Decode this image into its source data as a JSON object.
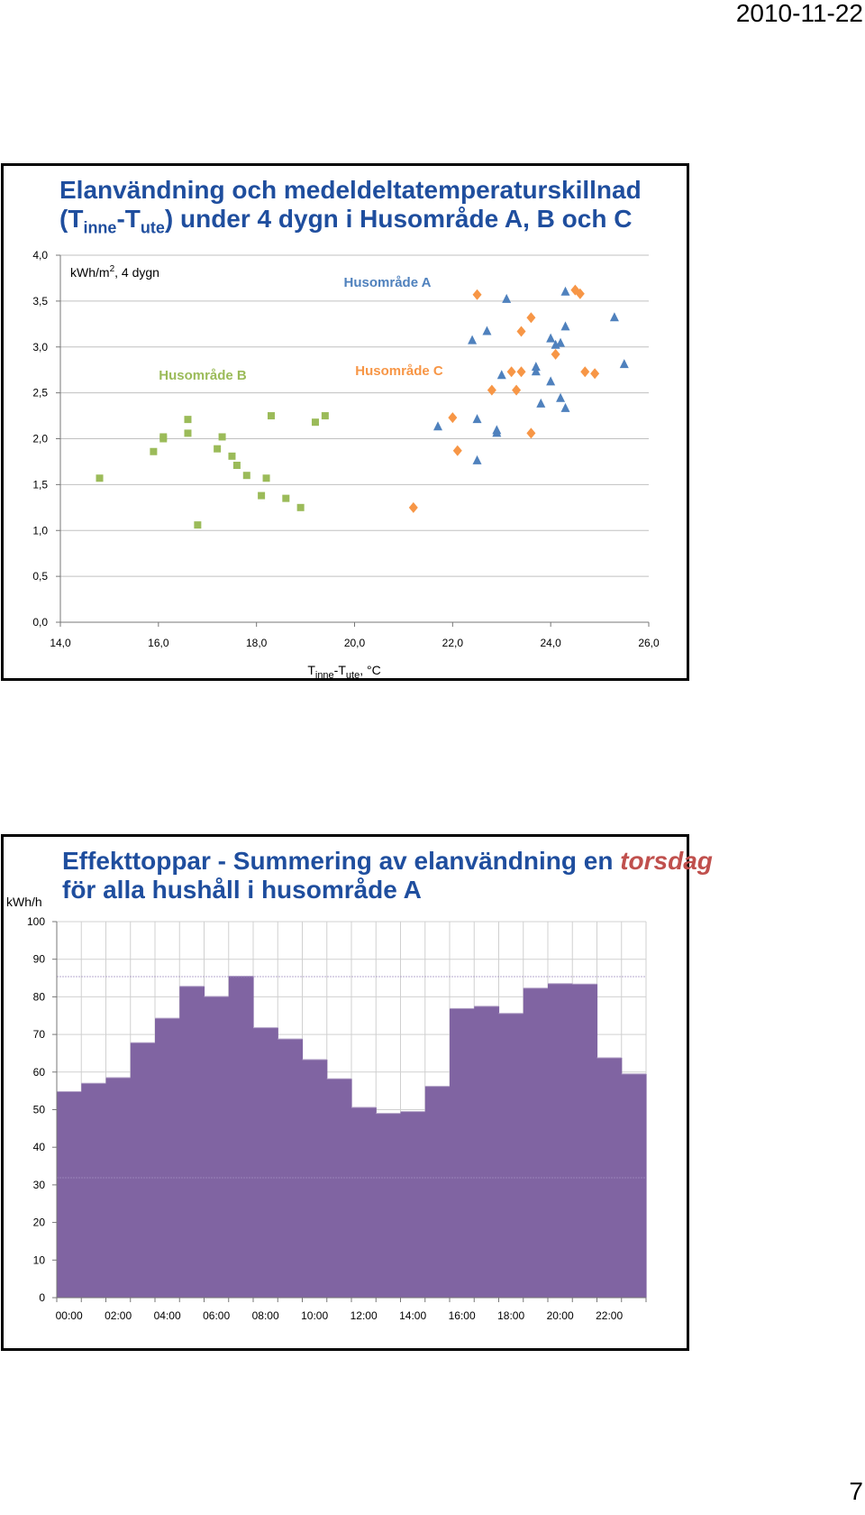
{
  "header": {
    "date": "2010-11-22",
    "page_number": "7"
  },
  "chart_data": [
    {
      "type": "scatter",
      "title_line1": "Elanvändning och medeldeltatemperaturskillnad",
      "title_line2_parts": [
        "(T",
        "inne",
        "-T",
        "ute",
        ") under 4 dygn i Husområde A, B och C"
      ],
      "ylabel_parts": [
        "kWh/m",
        "2",
        ", 4 dygn"
      ],
      "xlabel_parts": [
        "T",
        "inne",
        "-T",
        "ute",
        ", °C"
      ],
      "xlim": [
        14,
        26
      ],
      "ylim": [
        0,
        4
      ],
      "x_ticks": [
        "14,0",
        "16,0",
        "18,0",
        "20,0",
        "22,0",
        "24,0",
        "26,0"
      ],
      "y_ticks": [
        "0,0",
        "0,5",
        "1,0",
        "1,5",
        "2,0",
        "2,5",
        "3,0",
        "3,5",
        "4,0"
      ],
      "grid": "horizontal",
      "series": [
        {
          "name": "Husområde A",
          "marker": "triangle",
          "color": "#4f81bd",
          "points": [
            [
              21.7,
              2.13
            ],
            [
              22.4,
              3.07
            ],
            [
              22.5,
              2.21
            ],
            [
              22.5,
              1.76
            ],
            [
              22.7,
              3.17
            ],
            [
              22.9,
              2.06
            ],
            [
              22.9,
              2.09
            ],
            [
              23.0,
              2.69
            ],
            [
              23.1,
              3.52
            ],
            [
              23.7,
              2.78
            ],
            [
              23.7,
              2.73
            ],
            [
              23.8,
              2.38
            ],
            [
              24.0,
              3.09
            ],
            [
              24.0,
              2.62
            ],
            [
              24.1,
              3.02
            ],
            [
              24.2,
              3.04
            ],
            [
              24.2,
              2.44
            ],
            [
              24.3,
              2.33
            ],
            [
              24.3,
              3.22
            ],
            [
              24.3,
              3.6
            ],
            [
              25.3,
              3.32
            ],
            [
              25.5,
              2.81
            ]
          ]
        },
        {
          "name": "Husområde B",
          "marker": "square",
          "color": "#9bbb59",
          "points": [
            [
              14.8,
              1.57
            ],
            [
              15.9,
              1.86
            ],
            [
              16.1,
              2.0
            ],
            [
              16.1,
              2.02
            ],
            [
              16.6,
              2.21
            ],
            [
              16.6,
              2.06
            ],
            [
              16.8,
              1.06
            ],
            [
              17.2,
              1.89
            ],
            [
              17.3,
              2.02
            ],
            [
              17.5,
              1.81
            ],
            [
              17.6,
              1.71
            ],
            [
              17.8,
              1.6
            ],
            [
              18.1,
              1.38
            ],
            [
              18.2,
              1.57
            ],
            [
              18.3,
              2.25
            ],
            [
              18.6,
              1.35
            ],
            [
              18.9,
              1.25
            ],
            [
              19.2,
              2.18
            ],
            [
              19.4,
              2.25
            ]
          ]
        },
        {
          "name": "Husområde C",
          "marker": "diamond",
          "color": "#f79646",
          "points": [
            [
              21.2,
              1.25
            ],
            [
              22.0,
              2.23
            ],
            [
              22.1,
              1.87
            ],
            [
              22.5,
              3.57
            ],
            [
              22.8,
              2.53
            ],
            [
              23.2,
              2.73
            ],
            [
              23.3,
              2.53
            ],
            [
              23.4,
              3.17
            ],
            [
              23.4,
              2.73
            ],
            [
              23.6,
              3.32
            ],
            [
              23.6,
              2.06
            ],
            [
              24.1,
              2.92
            ],
            [
              24.5,
              3.62
            ],
            [
              24.6,
              3.58
            ],
            [
              24.7,
              2.73
            ],
            [
              24.9,
              2.71
            ]
          ]
        }
      ],
      "annotations": [
        {
          "text": "Husområde A",
          "color": "#4f81bd"
        },
        {
          "text": "Husområde B",
          "color": "#9bbb59"
        },
        {
          "text": "Husområde C",
          "color": "#f79646"
        }
      ]
    },
    {
      "type": "bar",
      "title_line1_prefix": "Effekttoppar - Summering av elanvändning en ",
      "title_line1_emph": "torsdag",
      "title_line2": "för alla hushåll i husområde A",
      "ylabel": "kWh/h",
      "ylim": [
        0,
        100
      ],
      "y_ticks": [
        "0",
        "10",
        "20",
        "30",
        "40",
        "50",
        "60",
        "70",
        "80",
        "90",
        "100"
      ],
      "x_tick_labels": [
        "00:00",
        "02:00",
        "04:00",
        "06:00",
        "08:00",
        "10:00",
        "12:00",
        "14:00",
        "16:00",
        "18:00",
        "20:00",
        "22:00"
      ],
      "color": "#8064a2",
      "values": [
        54.8,
        57.0,
        58.5,
        67.8,
        74.3,
        82.8,
        80.1,
        85.5,
        71.8,
        68.8,
        63.3,
        58.2,
        50.6,
        49.0,
        49.5,
        56.2,
        76.9,
        77.5,
        75.6,
        82.3,
        83.5,
        83.4,
        63.8,
        59.5
      ]
    }
  ]
}
